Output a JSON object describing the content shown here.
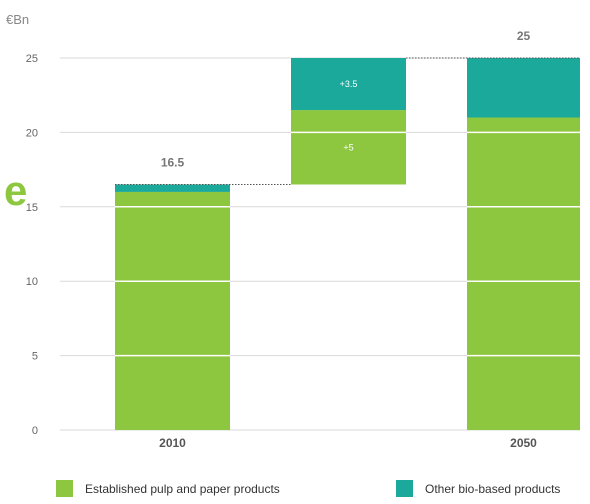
{
  "unit_label": "€Bn",
  "stray_glyph": "e",
  "colors": {
    "established": "#8dc63f",
    "other": "#1aa99a",
    "grid": "#d9d9d9",
    "axis_text": "#666666"
  },
  "chart_data": {
    "type": "bar",
    "subtype": "waterfall",
    "categories": [
      "2010",
      "",
      "2050"
    ],
    "ylim": [
      0,
      25
    ],
    "yticks": [
      0,
      5,
      10,
      15,
      20,
      25
    ],
    "grid": true,
    "legend_position": "bottom",
    "series": [
      {
        "name": "Established pulp and paper products",
        "values": [
          16,
          5,
          21
        ]
      },
      {
        "name": "Other bio-based products",
        "values": [
          0.5,
          3.5,
          4
        ]
      }
    ],
    "bases": [
      0,
      16.5,
      0
    ],
    "total_labels": [
      "16.5",
      "",
      "25"
    ],
    "segment_labels": [
      {
        "category": 1,
        "series": 0,
        "text": "+5"
      },
      {
        "category": 1,
        "series": 1,
        "text": "+3.5"
      }
    ]
  }
}
